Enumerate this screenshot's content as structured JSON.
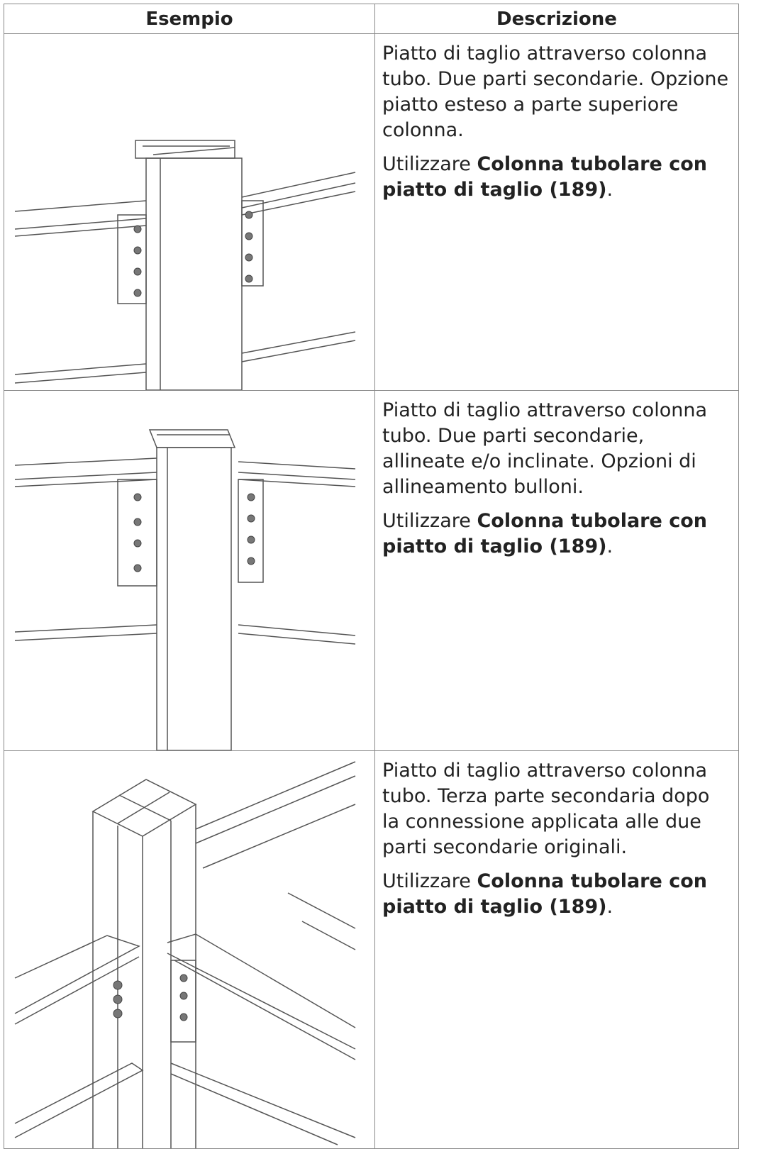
{
  "table": {
    "header": [
      "Esempio",
      "Descrizione"
    ],
    "rows": [
      {
        "description": "Piatto di taglio attraverso colonna tubo. Due parti secondarie. Opzione piatto esteso a parte superiore colonna.",
        "usage_prefix": "Utilizzare ",
        "usage_link": "Colonna tubolare con piatto di taglio (189)",
        "usage_suffix": "."
      },
      {
        "description": "Piatto di taglio attraverso colonna tubo. Due parti secondarie, allineate e/o inclinate. Opzioni di allineamento bulloni.",
        "usage_prefix": "Utilizzare ",
        "usage_link": "Colonna tubolare con piatto di taglio (189)",
        "usage_suffix": "."
      },
      {
        "description": "Piatto di taglio attraverso colonna tubo. Terza parte secondaria dopo la connessione applicata alle due parti secondarie originali.",
        "usage_prefix": "Utilizzare ",
        "usage_link": "Colonna tubolare con piatto di taglio (189)",
        "usage_suffix": "."
      }
    ]
  }
}
